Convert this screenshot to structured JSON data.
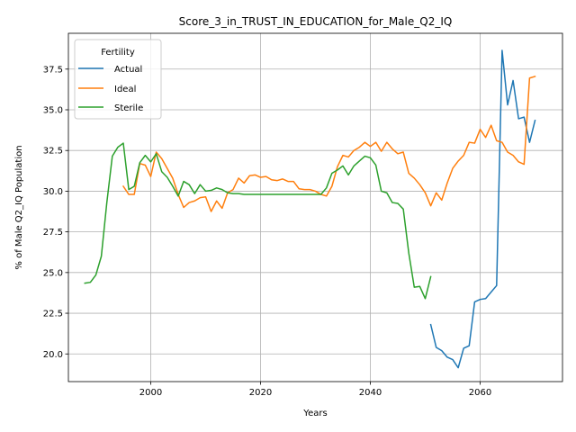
{
  "chart_data": {
    "type": "line",
    "title": "Score_3_in_TRUST_IN_EDUCATION_for_Male_Q2_IQ",
    "xlabel": "Years",
    "ylabel": "% of Male Q2_IQ Population",
    "xlim": [
      1985,
      2075
    ],
    "ylim": [
      18.3,
      39.7
    ],
    "xticks": [
      2000,
      2020,
      2040,
      2060
    ],
    "yticks": [
      20.0,
      22.5,
      25.0,
      27.5,
      30.0,
      32.5,
      35.0,
      37.5
    ],
    "xtick_labels": [
      "2000",
      "2020",
      "2040",
      "2060"
    ],
    "ytick_labels": [
      "20.0",
      "22.5",
      "25.0",
      "27.5",
      "30.0",
      "32.5",
      "35.0",
      "37.5"
    ],
    "grid": true,
    "legend": {
      "title": "Fertility",
      "placement": "upper-left",
      "entries": [
        "Actual",
        "Ideal",
        "Sterile"
      ]
    },
    "series": [
      {
        "name": "Actual",
        "color": "#1f77b4",
        "points": [
          [
            2051,
            21.8
          ],
          [
            2052,
            20.4
          ],
          [
            2053,
            20.2
          ],
          [
            2054,
            19.8
          ],
          [
            2055,
            19.65
          ],
          [
            2056,
            19.15
          ],
          [
            2057,
            20.35
          ],
          [
            2058,
            20.5
          ],
          [
            2059,
            23.2
          ],
          [
            2060,
            23.35
          ],
          [
            2061,
            23.4
          ],
          [
            2062,
            23.8
          ],
          [
            2063,
            24.2
          ],
          [
            2064,
            38.65
          ],
          [
            2065,
            35.3
          ],
          [
            2066,
            36.8
          ],
          [
            2067,
            34.45
          ],
          [
            2068,
            34.55
          ],
          [
            2069,
            33.0
          ],
          [
            2070,
            34.35
          ]
        ]
      },
      {
        "name": "Ideal",
        "color": "#ff7f0e",
        "points": [
          [
            1995,
            30.3
          ],
          [
            1996,
            29.8
          ],
          [
            1997,
            29.8
          ],
          [
            1998,
            31.7
          ],
          [
            1999,
            31.6
          ],
          [
            2000,
            30.9
          ],
          [
            2001,
            32.4
          ],
          [
            2002,
            32.0
          ],
          [
            2003,
            31.4
          ],
          [
            2004,
            30.8
          ],
          [
            2005,
            29.8
          ],
          [
            2006,
            29.0
          ],
          [
            2007,
            29.3
          ],
          [
            2008,
            29.4
          ],
          [
            2009,
            29.6
          ],
          [
            2010,
            29.65
          ],
          [
            2011,
            28.75
          ],
          [
            2012,
            29.4
          ],
          [
            2013,
            28.95
          ],
          [
            2014,
            29.9
          ],
          [
            2015,
            30.1
          ],
          [
            2016,
            30.8
          ],
          [
            2017,
            30.5
          ],
          [
            2018,
            30.95
          ],
          [
            2019,
            31.0
          ],
          [
            2020,
            30.85
          ],
          [
            2021,
            30.9
          ],
          [
            2022,
            30.7
          ],
          [
            2023,
            30.65
          ],
          [
            2024,
            30.75
          ],
          [
            2025,
            30.6
          ],
          [
            2026,
            30.6
          ],
          [
            2027,
            30.15
          ],
          [
            2028,
            30.1
          ],
          [
            2029,
            30.1
          ],
          [
            2030,
            30.0
          ],
          [
            2031,
            29.8
          ],
          [
            2032,
            29.7
          ],
          [
            2033,
            30.3
          ],
          [
            2034,
            31.5
          ],
          [
            2035,
            32.2
          ],
          [
            2036,
            32.1
          ],
          [
            2037,
            32.5
          ],
          [
            2038,
            32.7
          ],
          [
            2039,
            33.0
          ],
          [
            2040,
            32.75
          ],
          [
            2041,
            33.0
          ],
          [
            2042,
            32.45
          ],
          [
            2043,
            33.0
          ],
          [
            2044,
            32.6
          ],
          [
            2045,
            32.3
          ],
          [
            2046,
            32.4
          ],
          [
            2047,
            31.1
          ],
          [
            2048,
            30.8
          ],
          [
            2049,
            30.4
          ],
          [
            2050,
            29.9
          ],
          [
            2051,
            29.1
          ],
          [
            2052,
            29.9
          ],
          [
            2053,
            29.45
          ],
          [
            2054,
            30.5
          ],
          [
            2055,
            31.4
          ],
          [
            2056,
            31.85
          ],
          [
            2057,
            32.2
          ],
          [
            2058,
            33.0
          ],
          [
            2059,
            32.95
          ],
          [
            2060,
            33.8
          ],
          [
            2061,
            33.3
          ],
          [
            2062,
            34.05
          ],
          [
            2063,
            33.1
          ],
          [
            2064,
            33.0
          ],
          [
            2065,
            32.4
          ],
          [
            2066,
            32.2
          ],
          [
            2067,
            31.8
          ],
          [
            2068,
            31.65
          ],
          [
            2069,
            36.95
          ],
          [
            2070,
            37.05
          ]
        ]
      },
      {
        "name": "Sterile",
        "color": "#2ca02c",
        "points": [
          [
            1988,
            24.35
          ],
          [
            1989,
            24.4
          ],
          [
            1990,
            24.85
          ],
          [
            1991,
            26.0
          ],
          [
            1992,
            29.3
          ],
          [
            1993,
            32.15
          ],
          [
            1994,
            32.7
          ],
          [
            1995,
            32.95
          ],
          [
            1996,
            30.1
          ],
          [
            1997,
            30.3
          ],
          [
            1998,
            31.75
          ],
          [
            1999,
            32.2
          ],
          [
            2000,
            31.8
          ],
          [
            2001,
            32.3
          ],
          [
            2002,
            31.2
          ],
          [
            2003,
            30.85
          ],
          [
            2004,
            30.3
          ],
          [
            2005,
            29.7
          ],
          [
            2006,
            30.6
          ],
          [
            2007,
            30.4
          ],
          [
            2008,
            29.85
          ],
          [
            2009,
            30.4
          ],
          [
            2010,
            30.0
          ],
          [
            2011,
            30.05
          ],
          [
            2012,
            30.2
          ],
          [
            2013,
            30.1
          ],
          [
            2014,
            29.9
          ],
          [
            2015,
            29.85
          ],
          [
            2016,
            29.85
          ],
          [
            2017,
            29.8
          ],
          [
            2018,
            29.8
          ],
          [
            2019,
            29.8
          ],
          [
            2020,
            29.8
          ],
          [
            2021,
            29.8
          ],
          [
            2022,
            29.8
          ],
          [
            2023,
            29.8
          ],
          [
            2024,
            29.8
          ],
          [
            2025,
            29.8
          ],
          [
            2026,
            29.8
          ],
          [
            2027,
            29.8
          ],
          [
            2028,
            29.8
          ],
          [
            2029,
            29.8
          ],
          [
            2030,
            29.8
          ],
          [
            2031,
            29.8
          ],
          [
            2032,
            30.2
          ],
          [
            2033,
            31.1
          ],
          [
            2034,
            31.3
          ],
          [
            2035,
            31.55
          ],
          [
            2036,
            31.0
          ],
          [
            2037,
            31.55
          ],
          [
            2038,
            31.85
          ],
          [
            2039,
            32.15
          ],
          [
            2040,
            32.05
          ],
          [
            2041,
            31.6
          ],
          [
            2042,
            30.0
          ],
          [
            2043,
            29.9
          ],
          [
            2044,
            29.3
          ],
          [
            2045,
            29.25
          ],
          [
            2046,
            28.9
          ],
          [
            2047,
            26.2
          ],
          [
            2048,
            24.1
          ],
          [
            2049,
            24.15
          ],
          [
            2050,
            23.4
          ],
          [
            2051,
            24.75
          ]
        ]
      }
    ]
  }
}
